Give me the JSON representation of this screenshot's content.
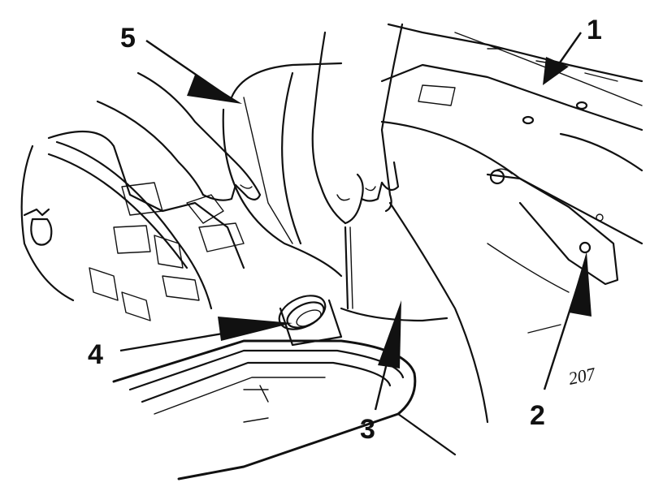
{
  "figure": {
    "description_hidden": "",
    "callouts": [
      {
        "label": "1"
      },
      {
        "label": "2"
      },
      {
        "label": "3"
      },
      {
        "label": "4"
      },
      {
        "label": "5"
      }
    ],
    "artist_mark": "207"
  }
}
